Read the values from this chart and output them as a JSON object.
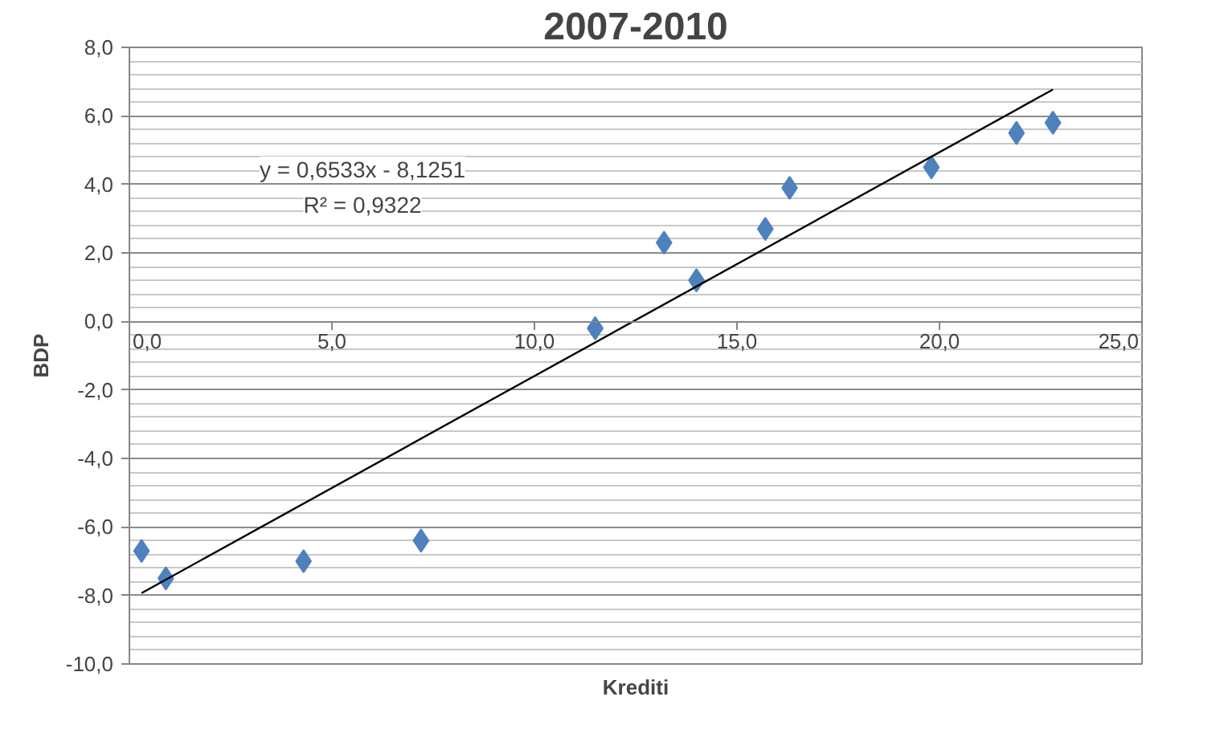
{
  "chart_data": {
    "type": "scatter",
    "title": "2007-2010",
    "xlabel": "Krediti",
    "ylabel": "BDP",
    "series": [
      {
        "marker": "diamond",
        "color": "#4f81bd",
        "x": [
          0.3,
          0.9,
          4.3,
          7.2,
          11.5,
          13.2,
          14.0,
          15.7,
          16.3,
          19.8,
          21.9,
          22.8
        ],
        "values": [
          -6.7,
          -7.5,
          -7.0,
          -6.4,
          -0.2,
          2.3,
          1.2,
          2.7,
          3.9,
          4.5,
          5.5,
          5.8
        ]
      },
      {
        "type": "line",
        "color": "#000000",
        "x": [
          0.3,
          22.8
        ],
        "values": [
          -7.93,
          6.77
        ]
      }
    ],
    "grid": "y",
    "xlim": [
      0,
      25
    ],
    "ylim": [
      -10,
      8
    ],
    "xticks": [
      {
        "value": 0,
        "label": "0,0"
      },
      {
        "value": 5,
        "label": "5,0"
      },
      {
        "value": 10,
        "label": "10,0"
      },
      {
        "value": 15,
        "label": "15,0"
      },
      {
        "value": 20,
        "label": "20,0"
      },
      {
        "value": 25,
        "label": "25,0"
      }
    ],
    "yticks": [
      {
        "value": -10,
        "label": "-10,0"
      },
      {
        "value": -8,
        "label": "-8,0"
      },
      {
        "value": -6,
        "label": "-6,0"
      },
      {
        "value": -4,
        "label": "-4,0"
      },
      {
        "value": -2,
        "label": "-2,0"
      },
      {
        "value": 0,
        "label": "0,0"
      },
      {
        "value": 2,
        "label": "2,0"
      },
      {
        "value": 4,
        "label": "4,0"
      },
      {
        "value": 6,
        "label": "6,0"
      },
      {
        "value": 8,
        "label": "8,0"
      }
    ],
    "annotations": [
      "y = 0,6533x - 8,1251",
      "R² = 0,9322"
    ]
  }
}
